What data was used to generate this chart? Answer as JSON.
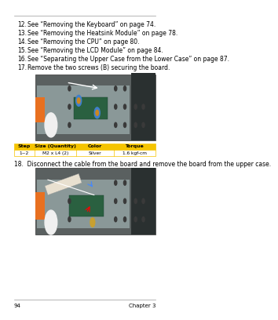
{
  "page_num": "94",
  "chapter": "Chapter 3",
  "bg_color": "#ffffff",
  "top_line_color": "#999999",
  "bottom_line_color": "#999999",
  "bullet_items": [
    {
      "num": "12.",
      "text": "See “Removing the Keyboard” on page 74."
    },
    {
      "num": "13.",
      "text": "See “Removing the Heatsink Module” on page 78."
    },
    {
      "num": "14.",
      "text": "See “Removing the CPU” on page 80."
    },
    {
      "num": "15.",
      "text": "See “Removing the LCD Module” on page 84."
    },
    {
      "num": "16.",
      "text": "See “Separating the Upper Case from the Lower Case” on page 87."
    },
    {
      "num": "17.",
      "text": "Remove the two screws (B) securing the board."
    }
  ],
  "step18_text": "18.  Disconnect the cable from the board and remove the board from the upper case.",
  "table_header_bg": "#f5c400",
  "table_header_text_color": "#000000",
  "table_row_bg": "#ffffff",
  "table_border_color": "#f5c400",
  "table_headers": [
    "Step",
    "Size (Quantity)",
    "Color",
    "Torque"
  ],
  "table_row": [
    "1~2",
    "M2 x L4 (2)",
    "Silver",
    "1.6 kgf-cm"
  ],
  "font_size_text": 5.5,
  "font_size_footer": 5.0
}
